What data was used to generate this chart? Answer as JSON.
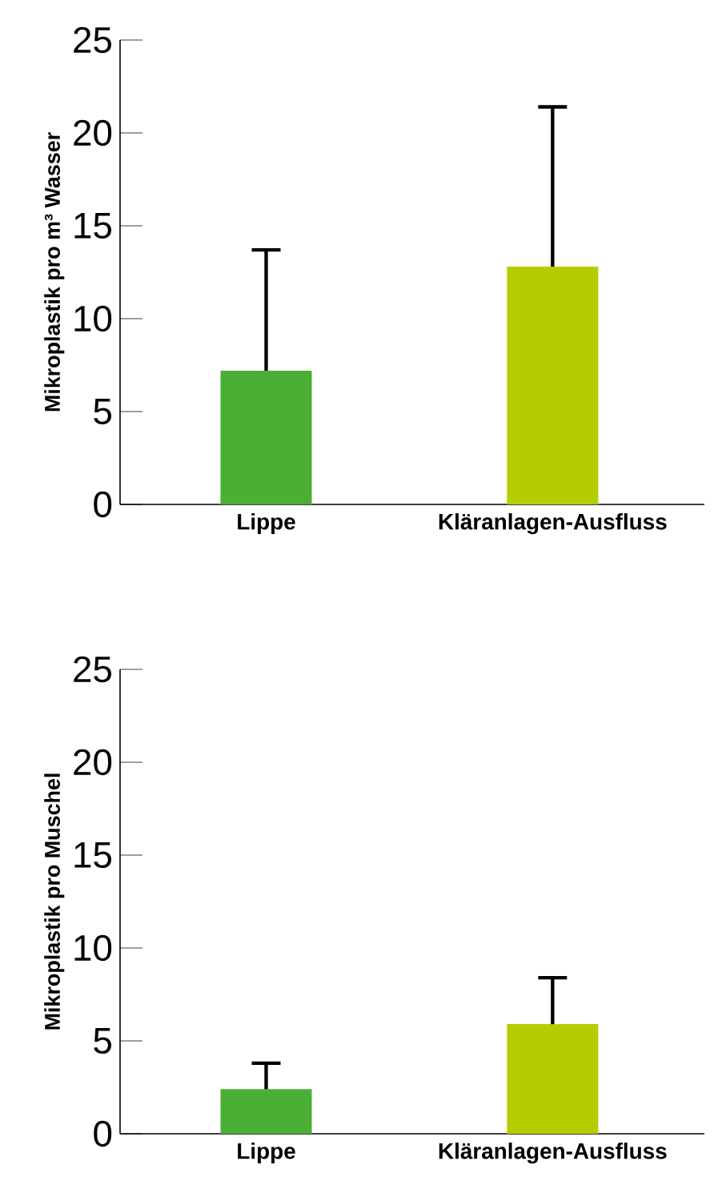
{
  "chart_data": [
    {
      "type": "bar",
      "ylabel": "Mikroplastik pro m³ Wasser",
      "categories": [
        "Lippe",
        "Kläranlagen-Ausfluss"
      ],
      "values": [
        7.2,
        12.8
      ],
      "colors": [
        "#4caf35",
        "#b5cc00"
      ],
      "errors": [
        [
          7.2,
          13.7
        ],
        [
          12.8,
          21.4
        ]
      ],
      "ylim": [
        0,
        25
      ],
      "yticks": [
        0,
        5,
        10,
        15,
        20,
        25
      ],
      "grid": false
    },
    {
      "type": "bar",
      "ylabel": "Mikroplastik pro Muschel",
      "categories": [
        "Lippe",
        "Kläranlagen-Ausfluss"
      ],
      "values": [
        2.4,
        5.9
      ],
      "colors": [
        "#4caf35",
        "#b5cc00"
      ],
      "errors": [
        [
          2.4,
          3.8
        ],
        [
          5.9,
          8.4
        ]
      ],
      "ylim": [
        0,
        25
      ],
      "yticks": [
        0,
        5,
        10,
        15,
        20,
        25
      ],
      "grid": false
    }
  ]
}
